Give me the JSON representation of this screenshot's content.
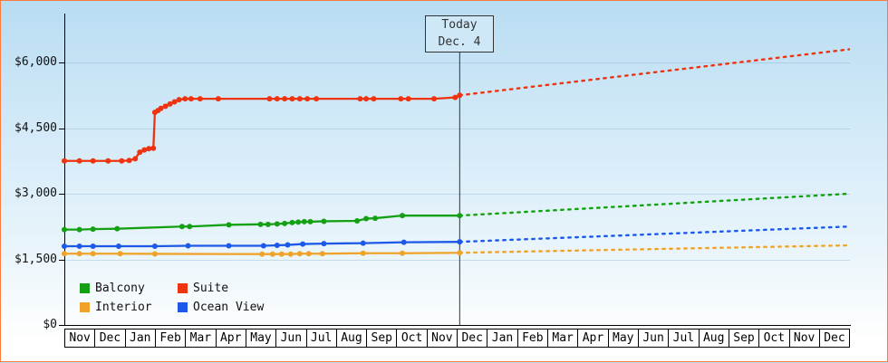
{
  "chart_data": {
    "type": "line",
    "title": "",
    "today_label": {
      "line1": "Today",
      "line2": "Dec. 4"
    },
    "today_month_index": 13.1,
    "ylim": [
      0,
      7100
    ],
    "y_ticks": [
      {
        "value": 0,
        "label": "$0"
      },
      {
        "value": 1500,
        "label": "$1,500"
      },
      {
        "value": 3000,
        "label": "$3,000"
      },
      {
        "value": 4500,
        "label": "$4,500"
      },
      {
        "value": 6000,
        "label": "$6,000"
      }
    ],
    "months": [
      "Nov",
      "Dec",
      "Jan",
      "Feb",
      "Mar",
      "Apr",
      "May",
      "Jun",
      "Jul",
      "Aug",
      "Sep",
      "Oct",
      "Nov",
      "Dec",
      "Jan",
      "Feb",
      "Mar",
      "Apr",
      "May",
      "Jun",
      "Jul",
      "Aug",
      "Sep",
      "Oct",
      "Nov",
      "Dec"
    ],
    "series": [
      {
        "name": "Interior",
        "color": "#f0a32a",
        "history": [
          [
            0,
            1630
          ],
          [
            0.5,
            1630
          ],
          [
            0.95,
            1630
          ],
          [
            1.85,
            1630
          ],
          [
            3.0,
            1625
          ],
          [
            6.55,
            1620
          ],
          [
            6.9,
            1620
          ],
          [
            7.2,
            1620
          ],
          [
            7.5,
            1620
          ],
          [
            7.8,
            1630
          ],
          [
            8.1,
            1630
          ],
          [
            8.55,
            1630
          ],
          [
            9.9,
            1640
          ],
          [
            11.2,
            1640
          ],
          [
            13.1,
            1650
          ]
        ],
        "forecast": [
          [
            13.1,
            1650
          ],
          [
            26,
            1820
          ]
        ]
      },
      {
        "name": "Ocean View",
        "color": "#1d59e8",
        "history": [
          [
            0,
            1800
          ],
          [
            0.5,
            1800
          ],
          [
            0.95,
            1800
          ],
          [
            1.8,
            1800
          ],
          [
            3.0,
            1800
          ],
          [
            4.1,
            1810
          ],
          [
            5.45,
            1810
          ],
          [
            6.6,
            1810
          ],
          [
            7.05,
            1820
          ],
          [
            7.4,
            1830
          ],
          [
            7.9,
            1850
          ],
          [
            8.6,
            1860
          ],
          [
            9.9,
            1870
          ],
          [
            11.25,
            1890
          ],
          [
            13.1,
            1900
          ]
        ],
        "forecast": [
          [
            13.1,
            1900
          ],
          [
            26,
            2250
          ]
        ]
      },
      {
        "name": "Balcony",
        "color": "#13a113",
        "history": [
          [
            0,
            2180
          ],
          [
            0.5,
            2180
          ],
          [
            0.95,
            2190
          ],
          [
            1.75,
            2200
          ],
          [
            3.9,
            2250
          ],
          [
            4.15,
            2250
          ],
          [
            5.45,
            2290
          ],
          [
            6.5,
            2300
          ],
          [
            6.75,
            2300
          ],
          [
            7.05,
            2310
          ],
          [
            7.3,
            2320
          ],
          [
            7.55,
            2340
          ],
          [
            7.75,
            2350
          ],
          [
            7.95,
            2360
          ],
          [
            8.15,
            2360
          ],
          [
            8.6,
            2370
          ],
          [
            9.7,
            2380
          ],
          [
            10.0,
            2430
          ],
          [
            10.3,
            2440
          ],
          [
            11.2,
            2500
          ],
          [
            13.1,
            2500
          ]
        ],
        "forecast": [
          [
            13.1,
            2500
          ],
          [
            26,
            3000
          ]
        ]
      },
      {
        "name": "Suite",
        "color": "#ee3311",
        "history": [
          [
            0,
            3750
          ],
          [
            0.5,
            3750
          ],
          [
            0.95,
            3750
          ],
          [
            1.45,
            3750
          ],
          [
            1.9,
            3750
          ],
          [
            2.15,
            3760
          ],
          [
            2.35,
            3800
          ],
          [
            2.5,
            3950
          ],
          [
            2.65,
            4000
          ],
          [
            2.8,
            4030
          ],
          [
            2.95,
            4040
          ],
          [
            3.0,
            4860
          ],
          [
            3.1,
            4900
          ],
          [
            3.2,
            4950
          ],
          [
            3.35,
            5000
          ],
          [
            3.5,
            5050
          ],
          [
            3.65,
            5100
          ],
          [
            3.8,
            5150
          ],
          [
            4.0,
            5170
          ],
          [
            4.2,
            5170
          ],
          [
            4.5,
            5170
          ],
          [
            5.1,
            5170
          ],
          [
            6.8,
            5170
          ],
          [
            7.05,
            5170
          ],
          [
            7.3,
            5170
          ],
          [
            7.55,
            5170
          ],
          [
            7.8,
            5170
          ],
          [
            8.05,
            5170
          ],
          [
            8.35,
            5170
          ],
          [
            9.8,
            5170
          ],
          [
            10.0,
            5170
          ],
          [
            10.25,
            5170
          ],
          [
            11.15,
            5170
          ],
          [
            11.4,
            5170
          ],
          [
            12.25,
            5170
          ],
          [
            12.95,
            5200
          ],
          [
            13.1,
            5250
          ]
        ],
        "forecast": [
          [
            13.1,
            5250
          ],
          [
            26,
            6300
          ]
        ]
      }
    ],
    "legend": [
      [
        "Balcony",
        "Suite"
      ],
      [
        "Interior",
        "Ocean View"
      ]
    ],
    "grid": true,
    "legend_position": "bottom-left"
  }
}
